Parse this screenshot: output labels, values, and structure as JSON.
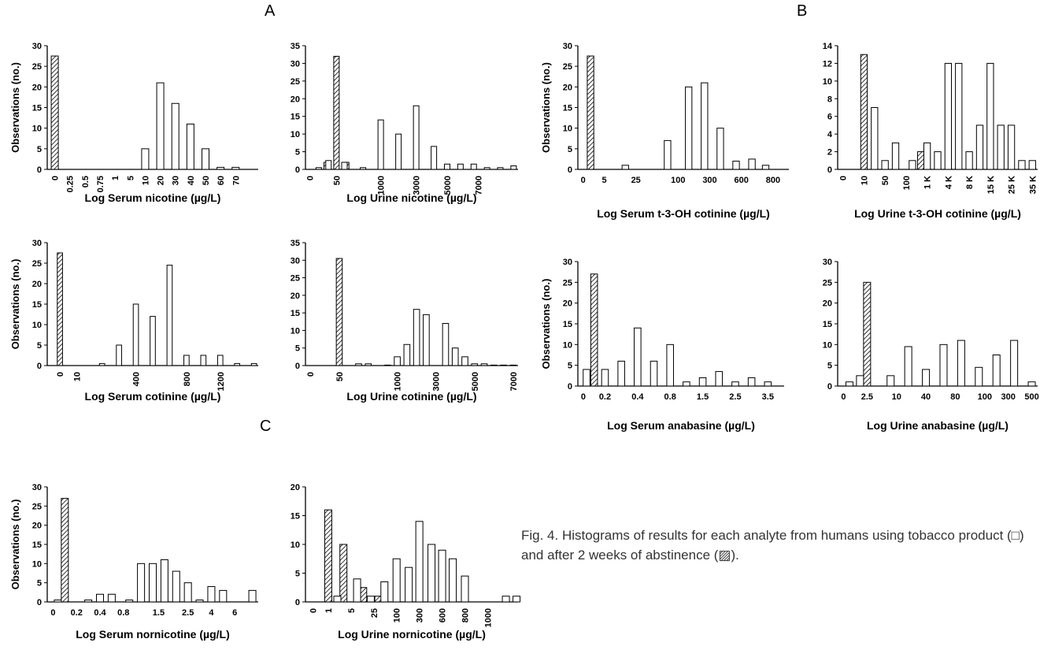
{
  "panel_labels": [
    "A",
    "B",
    "C"
  ],
  "caption": "Fig. 4. Histograms of results for each analyte from humans using tobacco product (□) and after 2 weeks of abstinence (▨).",
  "chart_data": [
    {
      "type": "bar",
      "xlabel": "Log Serum nicotine (µg/L)",
      "ylabel": "Observations (no.)",
      "ylim": [
        0,
        30
      ],
      "yticks": [
        0,
        5,
        10,
        15,
        20,
        25,
        30
      ],
      "xtick_labels": [
        "0",
        "0.25",
        "0.5",
        "0.75",
        "1",
        "5",
        "10",
        "20",
        "30",
        "40",
        "50",
        "60",
        "70"
      ],
      "series": [
        {
          "name": "after 2 weeks of abstinence",
          "x": [
            0
          ],
          "values": [
            27.5
          ]
        },
        {
          "name": "using tobacco product",
          "x": [
            6,
            7,
            8,
            9,
            10,
            11,
            12
          ],
          "values": [
            5,
            21,
            16,
            11,
            5,
            0.5,
            0.5
          ]
        }
      ]
    },
    {
      "type": "bar",
      "xlabel": "Log Urine nicotine (µg/L)",
      "ylabel": "",
      "ylim": [
        0,
        35
      ],
      "yticks": [
        0,
        5,
        10,
        15,
        20,
        25,
        30,
        35
      ],
      "xtick_labels": [
        "0",
        "50",
        "1000",
        "3000",
        "5000",
        "7000"
      ],
      "xtick_pos": [
        0,
        3,
        8,
        12,
        15.5,
        19
      ],
      "series": [
        {
          "name": "after 2 weeks of abstinence",
          "x": [
            1.9,
            3,
            4.1
          ],
          "values": [
            2,
            32,
            2
          ]
        },
        {
          "name": "using tobacco product",
          "x": [
            1,
            2.1,
            3.9,
            6,
            8,
            10,
            12,
            14,
            15.5,
            17,
            18.5,
            20,
            21.5,
            23
          ],
          "values": [
            0.5,
            2.5,
            2,
            0.5,
            14,
            10,
            18,
            6.5,
            1.5,
            1.5,
            1.5,
            0.5,
            0.5,
            1
          ]
        }
      ]
    },
    {
      "type": "bar",
      "xlabel": "Log Serum cotinine (µg/L)",
      "ylabel": "Observations (no.)",
      "ylim": [
        0,
        30
      ],
      "yticks": [
        0,
        5,
        10,
        15,
        20,
        25,
        30
      ],
      "xtick_labels": [
        "0",
        "10",
        "400",
        "800",
        "1200"
      ],
      "xtick_pos": [
        1,
        3,
        10,
        16,
        20
      ],
      "series": [
        {
          "name": "after 2 weeks of abstinence",
          "x": [
            1
          ],
          "values": [
            27.5
          ]
        },
        {
          "name": "using tobacco product",
          "x": [
            6,
            8,
            10,
            12,
            14,
            16,
            18,
            20,
            22,
            24
          ],
          "values": [
            0.5,
            5,
            15,
            12,
            24.5,
            2.5,
            2.5,
            2.5,
            0.5,
            0.5
          ]
        }
      ]
    },
    {
      "type": "bar",
      "xlabel": "Log Urine cotinine (µg/L)",
      "ylabel": "",
      "ylim": [
        0,
        35
      ],
      "yticks": [
        0,
        5,
        10,
        15,
        20,
        25,
        30,
        35
      ],
      "xtick_labels": [
        "0",
        "50",
        "1000",
        "3000",
        "5000",
        "7000"
      ],
      "xtick_pos": [
        0,
        3,
        9,
        13,
        17,
        21
      ],
      "series": [
        {
          "name": "after 2 weeks of abstinence",
          "x": [
            3
          ],
          "values": [
            30.5
          ]
        },
        {
          "name": "using tobacco product",
          "x": [
            5,
            6,
            8,
            9,
            10,
            11,
            12,
            14,
            15,
            16,
            17,
            18,
            19,
            20,
            21
          ],
          "values": [
            0.5,
            0.5,
            0.1,
            2.5,
            6,
            16,
            14.5,
            12,
            5,
            2.5,
            0.5,
            0.5,
            0.1,
            0.1,
            0.1
          ]
        }
      ]
    },
    {
      "type": "bar",
      "xlabel": "Log Serum nornicotine (µg/L)",
      "ylabel": "Observations (no.)",
      "ylim": [
        0,
        30
      ],
      "yticks": [
        0,
        5,
        10,
        15,
        20,
        25,
        30
      ],
      "xtick_labels": [
        "0",
        "0.2",
        "0.4",
        "0.8",
        "1.5",
        "2.5",
        "4",
        "6"
      ],
      "xtick_pos": [
        0,
        2,
        4,
        6,
        9,
        11.5,
        13.5,
        15.5
      ],
      "series": [
        {
          "name": "after 2 weeks of abstinence",
          "x": [
            1
          ],
          "values": [
            27
          ]
        },
        {
          "name": "using tobacco product",
          "x": [
            0.4,
            3,
            4,
            5,
            6.5,
            7.5,
            8.5,
            9.5,
            10.5,
            11.5,
            12.5,
            13.5,
            14.5,
            17
          ],
          "values": [
            0.5,
            0.5,
            2,
            2,
            0.5,
            10,
            10,
            11,
            8,
            5,
            0.5,
            4,
            3,
            3
          ]
        }
      ]
    },
    {
      "type": "bar",
      "xlabel": "Log Urine nornicotine (µg/L)",
      "ylabel": "",
      "ylim": [
        0,
        20
      ],
      "yticks": [
        0,
        5,
        10,
        15,
        20
      ],
      "xtick_labels": [
        "0",
        "1",
        "5",
        "25",
        "100",
        "300",
        "600",
        "800",
        "1000"
      ],
      "xtick_pos": [
        0,
        1,
        2.5,
        4,
        5.5,
        7,
        8.5,
        10,
        11.5
      ],
      "series": [
        {
          "name": "after 2 weeks of abstinence",
          "x": [
            1,
            2,
            3.3,
            4.3
          ],
          "values": [
            16,
            10,
            2.5,
            1
          ]
        },
        {
          "name": "using tobacco product",
          "x": [
            1.6,
            2.9,
            3.8,
            4.7,
            5.5,
            6.3,
            7,
            7.8,
            8.5,
            9.2,
            10,
            12.7,
            13.4
          ],
          "values": [
            1,
            4,
            1,
            3.5,
            7.5,
            6,
            14,
            10,
            9,
            7.5,
            4.5,
            1,
            1
          ]
        }
      ]
    },
    {
      "type": "bar",
      "xlabel": "Log Serum t-3-OH cotinine (µg/L)",
      "ylabel": "Observations (no.)",
      "ylim": [
        0,
        30
      ],
      "yticks": [
        0,
        5,
        10,
        15,
        20,
        25,
        30
      ],
      "xtick_labels": [
        "0",
        "5",
        "25",
        "100",
        "300",
        "600",
        "800"
      ],
      "xtick_pos": [
        0,
        2,
        5,
        9,
        12,
        15,
        18
      ],
      "series": [
        {
          "name": "after 2 weeks of abstinence",
          "x": [
            0.7
          ],
          "values": [
            27.5
          ]
        },
        {
          "name": "using tobacco product",
          "x": [
            4,
            8,
            10,
            11.5,
            13,
            14.5,
            16,
            17.3
          ],
          "values": [
            1,
            7,
            20,
            21,
            10,
            2,
            2.5,
            1
          ]
        }
      ]
    },
    {
      "type": "bar",
      "xlabel": "Log Urine t-3-OH cotinine (µg/L)",
      "ylabel": "",
      "ylim": [
        0,
        14
      ],
      "yticks": [
        0,
        2,
        4,
        6,
        8,
        10,
        12,
        14
      ],
      "xtick_labels": [
        "0",
        "10",
        "50",
        "100",
        "1 K",
        "4 K",
        "8 K",
        "15 K",
        "25 K",
        "35 K"
      ],
      "xtick_pos": [
        0,
        2,
        4,
        6,
        8,
        10,
        12,
        14,
        16,
        18
      ],
      "series": [
        {
          "name": "after 2 weeks of abstinence",
          "x": [
            2,
            7.4
          ],
          "values": [
            13,
            2
          ]
        },
        {
          "name": "using tobacco product",
          "x": [
            3,
            4,
            5,
            6.6,
            8,
            9,
            10,
            11,
            12,
            13,
            14,
            15,
            16,
            17,
            18
          ],
          "values": [
            7,
            1,
            3,
            1,
            3,
            2,
            12,
            12,
            2,
            5,
            12,
            5,
            5,
            1,
            1
          ]
        }
      ]
    },
    {
      "type": "bar",
      "xlabel": "Log Serum anabasine (µg/L)",
      "ylabel": "Observations (no.)",
      "ylim": [
        0,
        30
      ],
      "yticks": [
        0,
        5,
        10,
        15,
        20,
        25,
        30
      ],
      "xtick_labels": [
        "0",
        "0.2",
        "0.4",
        "0.8",
        "1.5",
        "2.5",
        "3.5"
      ],
      "xtick_pos": [
        0,
        2,
        5,
        8,
        11,
        14,
        17
      ],
      "series": [
        {
          "name": "after 2 weeks of abstinence",
          "x": [
            1
          ],
          "values": [
            27
          ]
        },
        {
          "name": "using tobacco product",
          "x": [
            0.3,
            2,
            3.5,
            5,
            6.5,
            8,
            9.5,
            11,
            12.5,
            14,
            15.5,
            17
          ],
          "values": [
            4,
            4,
            6,
            14,
            6,
            10,
            1,
            2,
            3.5,
            1,
            2,
            1
          ]
        }
      ]
    },
    {
      "type": "bar",
      "xlabel": "Log Urine anabasine (µg/L)",
      "ylabel": "",
      "ylim": [
        0,
        30
      ],
      "yticks": [
        0,
        5,
        10,
        15,
        20,
        25,
        30
      ],
      "xtick_labels": [
        "0",
        "2.5",
        "10",
        "40",
        "80",
        "100",
        "300",
        "500"
      ],
      "xtick_pos": [
        0,
        2,
        4.5,
        7,
        9.5,
        12,
        14,
        16
      ],
      "series": [
        {
          "name": "after 2 weeks of abstinence",
          "x": [
            2
          ],
          "values": [
            25
          ]
        },
        {
          "name": "using tobacco product",
          "x": [
            0.5,
            1.4,
            4,
            5.5,
            7,
            8.5,
            10,
            11.5,
            13,
            14.5,
            16
          ],
          "values": [
            1,
            2.5,
            2.5,
            9.5,
            4,
            10,
            11,
            4.5,
            7.5,
            11,
            1
          ]
        }
      ]
    }
  ]
}
